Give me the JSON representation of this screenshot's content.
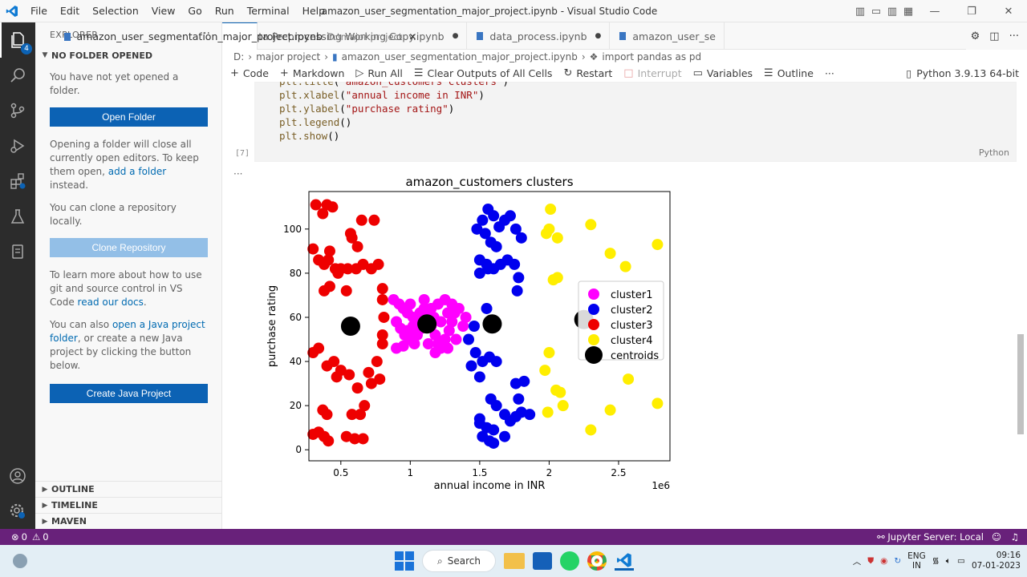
{
  "menu": [
    "File",
    "Edit",
    "Selection",
    "View",
    "Go",
    "Run",
    "Terminal",
    "Help"
  ],
  "window_title": "amazon_user_segmentation_major_project.ipynb - Visual Studio Code",
  "activity_badges": {
    "explorer": "4"
  },
  "sidebar": {
    "title": "EXPLORER",
    "section": "NO FOLDER OPENED",
    "p1": "You have not yet opened a folder.",
    "open_folder": "Open Folder",
    "p2a": "Opening a folder will close all currently open editors. To keep them open, ",
    "p2link": "add a folder",
    "p2b": " instead.",
    "p3": "You can clone a repository locally.",
    "clone": "Clone Repository",
    "p4a": "To learn more about how to use git and source control in VS Code ",
    "p4link": "read our docs",
    "p4b": ".",
    "p5a": "You can also ",
    "p5link": "open a Java project folder",
    "p5b": ", or create a new Java project by clicking the button below.",
    "create_java": "Create Java Project",
    "outline": "OUTLINE",
    "timeline": "TIMELINE",
    "maven": "MAVEN"
  },
  "tabs": [
    {
      "label": "amazon_user_segmentation_major_project.ipynb",
      "desc": "D:\\major project"
    },
    {
      "label": "Data Preprocessing Working Copy.ipynb"
    },
    {
      "label": "data_process.ipynb"
    },
    {
      "label": "amazon_user_se"
    }
  ],
  "breadcrumb": [
    "D:",
    "major project",
    "amazon_user_segmentation_major_project.ipynb",
    "import pandas as pd"
  ],
  "toolbar": {
    "code": "Code",
    "markdown": "Markdown",
    "run_all": "Run All",
    "clear": "Clear Outputs of All Cells",
    "restart": "Restart",
    "interrupt": "Interrupt",
    "variables": "Variables",
    "outline": "Outline",
    "kernel": "Python 3.9.13 64-bit"
  },
  "cell": {
    "lines": [
      {
        "fn": "plt.title",
        "arg": "\"amazon_customers clusters\""
      },
      {
        "fn": "plt.xlabel",
        "arg": "\"annual income in INR\""
      },
      {
        "fn": "plt.ylabel",
        "arg": "\"purchase rating\""
      },
      {
        "fn": "plt.legend",
        "arg": ""
      },
      {
        "fn": "plt.show",
        "arg": ""
      }
    ],
    "exec_count": "[7]",
    "language": "Python"
  },
  "chart_data": {
    "type": "scatter",
    "title": "amazon_customers clusters",
    "xlabel": "annual income in INR",
    "ylabel": "purchase rating",
    "offset_label": "1e6",
    "xlim": [
      0.27,
      2.87
    ],
    "ylim": [
      -5,
      117
    ],
    "xticks": [
      0.5,
      1.0,
      1.5,
      2.0,
      2.5
    ],
    "yticks": [
      0,
      20,
      40,
      60,
      80,
      100
    ],
    "legend_position": "center-right",
    "series": [
      {
        "name": "cluster1",
        "color": "#ff00ff",
        "points": [
          [
            0.88,
            68
          ],
          [
            0.92,
            66
          ],
          [
            0.95,
            64
          ],
          [
            0.98,
            62
          ],
          [
            1.0,
            66
          ],
          [
            1.02,
            60
          ],
          [
            1.05,
            58
          ],
          [
            1.08,
            55
          ],
          [
            0.9,
            58
          ],
          [
            0.93,
            55
          ],
          [
            0.96,
            52
          ],
          [
            1.0,
            50
          ],
          [
            1.03,
            48
          ],
          [
            0.9,
            46
          ],
          [
            0.95,
            47
          ],
          [
            1.07,
            62
          ],
          [
            1.1,
            64
          ],
          [
            1.12,
            60
          ],
          [
            1.15,
            56
          ],
          [
            1.18,
            52
          ],
          [
            1.2,
            48
          ],
          [
            1.22,
            46
          ],
          [
            1.25,
            50
          ],
          [
            1.28,
            54
          ],
          [
            1.3,
            58
          ],
          [
            1.32,
            62
          ],
          [
            1.35,
            64
          ],
          [
            1.3,
            66
          ],
          [
            1.25,
            68
          ],
          [
            1.2,
            66
          ],
          [
            1.15,
            64
          ],
          [
            1.1,
            68
          ],
          [
            1.05,
            52
          ],
          [
            1.13,
            48
          ],
          [
            1.18,
            44
          ],
          [
            1.27,
            46
          ],
          [
            1.33,
            50
          ],
          [
            1.38,
            56
          ],
          [
            1.4,
            60
          ],
          [
            1.02,
            56
          ],
          [
            0.98,
            54
          ],
          [
            1.22,
            58
          ],
          [
            1.27,
            62
          ],
          [
            1.17,
            60
          ]
        ]
      },
      {
        "name": "cluster2",
        "color": "#0000ee",
        "points": [
          [
            1.52,
            104
          ],
          [
            1.56,
            109
          ],
          [
            1.6,
            106
          ],
          [
            1.64,
            101
          ],
          [
            1.68,
            104
          ],
          [
            1.72,
            106
          ],
          [
            1.76,
            100
          ],
          [
            1.8,
            96
          ],
          [
            1.48,
            100
          ],
          [
            1.54,
            98
          ],
          [
            1.58,
            94
          ],
          [
            1.62,
            92
          ],
          [
            1.5,
            86
          ],
          [
            1.55,
            84
          ],
          [
            1.6,
            82
          ],
          [
            1.65,
            84
          ],
          [
            1.7,
            86
          ],
          [
            1.75,
            84
          ],
          [
            1.78,
            78
          ],
          [
            1.5,
            80
          ],
          [
            1.56,
            82
          ],
          [
            1.77,
            72
          ],
          [
            1.55,
            64
          ],
          [
            1.46,
            56
          ],
          [
            1.42,
            50
          ],
          [
            1.47,
            44
          ],
          [
            1.52,
            40
          ],
          [
            1.57,
            42
          ],
          [
            1.62,
            40
          ],
          [
            1.44,
            38
          ],
          [
            1.5,
            33
          ],
          [
            1.58,
            23
          ],
          [
            1.62,
            20
          ],
          [
            1.68,
            16
          ],
          [
            1.72,
            13
          ],
          [
            1.76,
            15
          ],
          [
            1.8,
            17
          ],
          [
            1.86,
            16
          ],
          [
            1.5,
            12
          ],
          [
            1.55,
            10
          ],
          [
            1.6,
            9
          ],
          [
            1.52,
            6
          ],
          [
            1.57,
            4
          ],
          [
            1.68,
            6
          ],
          [
            1.78,
            23
          ],
          [
            1.82,
            31
          ],
          [
            1.76,
            30
          ],
          [
            1.5,
            14
          ],
          [
            1.6,
            3
          ]
        ]
      },
      {
        "name": "cluster3",
        "color": "#ee0000",
        "points": [
          [
            0.32,
            111
          ],
          [
            0.4,
            111
          ],
          [
            0.44,
            110
          ],
          [
            0.37,
            107
          ],
          [
            0.58,
            96
          ],
          [
            0.62,
            92
          ],
          [
            0.65,
            104
          ],
          [
            0.74,
            104
          ],
          [
            0.57,
            98
          ],
          [
            0.3,
            91
          ],
          [
            0.34,
            86
          ],
          [
            0.38,
            84
          ],
          [
            0.41,
            86
          ],
          [
            0.46,
            82
          ],
          [
            0.5,
            82
          ],
          [
            0.55,
            82
          ],
          [
            0.61,
            82
          ],
          [
            0.66,
            84
          ],
          [
            0.72,
            82
          ],
          [
            0.77,
            84
          ],
          [
            0.38,
            72
          ],
          [
            0.42,
            74
          ],
          [
            0.8,
            73
          ],
          [
            0.8,
            68
          ],
          [
            0.54,
            72
          ],
          [
            0.81,
            60
          ],
          [
            0.8,
            52
          ],
          [
            0.8,
            48
          ],
          [
            0.76,
            40
          ],
          [
            0.7,
            35
          ],
          [
            0.67,
            20
          ],
          [
            0.64,
            16
          ],
          [
            0.58,
            16
          ],
          [
            0.4,
            16
          ],
          [
            0.37,
            18
          ],
          [
            0.3,
            44
          ],
          [
            0.34,
            46
          ],
          [
            0.4,
            38
          ],
          [
            0.45,
            40
          ],
          [
            0.5,
            36
          ],
          [
            0.56,
            34
          ],
          [
            0.62,
            28
          ],
          [
            0.34,
            8
          ],
          [
            0.38,
            6
          ],
          [
            0.41,
            4
          ],
          [
            0.54,
            6
          ],
          [
            0.6,
            5
          ],
          [
            0.66,
            5
          ],
          [
            0.78,
            32
          ],
          [
            0.72,
            30
          ],
          [
            0.47,
            33
          ],
          [
            0.3,
            7
          ],
          [
            0.42,
            90
          ],
          [
            0.48,
            80
          ]
        ]
      },
      {
        "name": "cluster4",
        "color": "#ffee00",
        "points": [
          [
            2.01,
            109
          ],
          [
            2.0,
            100
          ],
          [
            1.98,
            98
          ],
          [
            2.06,
            96
          ],
          [
            2.3,
            102
          ],
          [
            2.44,
            89
          ],
          [
            2.55,
            83
          ],
          [
            2.78,
            93
          ],
          [
            2.06,
            78
          ],
          [
            2.03,
            77
          ],
          [
            2.0,
            44
          ],
          [
            1.97,
            36
          ],
          [
            2.05,
            27
          ],
          [
            2.08,
            26
          ],
          [
            2.1,
            20
          ],
          [
            1.99,
            17
          ],
          [
            2.3,
            9
          ],
          [
            2.44,
            18
          ],
          [
            2.57,
            32
          ],
          [
            2.78,
            21
          ]
        ]
      },
      {
        "name": "centroids",
        "color": "#000000",
        "points": [
          [
            0.57,
            56
          ],
          [
            1.12,
            57
          ],
          [
            1.59,
            57
          ],
          [
            2.25,
            59
          ]
        ]
      }
    ]
  },
  "status": {
    "errors": "0",
    "warnings": "0",
    "jupyter": "Jupyter Server: Local"
  },
  "taskbar": {
    "search": "Search",
    "lang1": "ENG",
    "lang2": "IN",
    "time": "09:16",
    "date": "07-01-2023"
  }
}
